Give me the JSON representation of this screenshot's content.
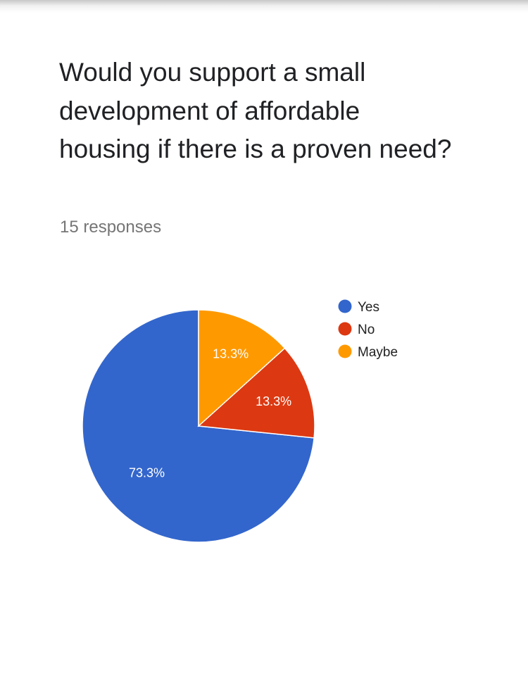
{
  "question": {
    "title": "Would you support a small development of affordable housing if there is a proven need?",
    "responses_label": "15 responses"
  },
  "chart_data": {
    "type": "pie",
    "categories": [
      "Yes",
      "No",
      "Maybe"
    ],
    "values": [
      73.3,
      13.3,
      13.3
    ],
    "value_labels": [
      "73.3%",
      "13.3%",
      "13.3%"
    ],
    "colors": [
      "#3366cc",
      "#dc3912",
      "#ff9900"
    ],
    "legend_position": "right"
  }
}
